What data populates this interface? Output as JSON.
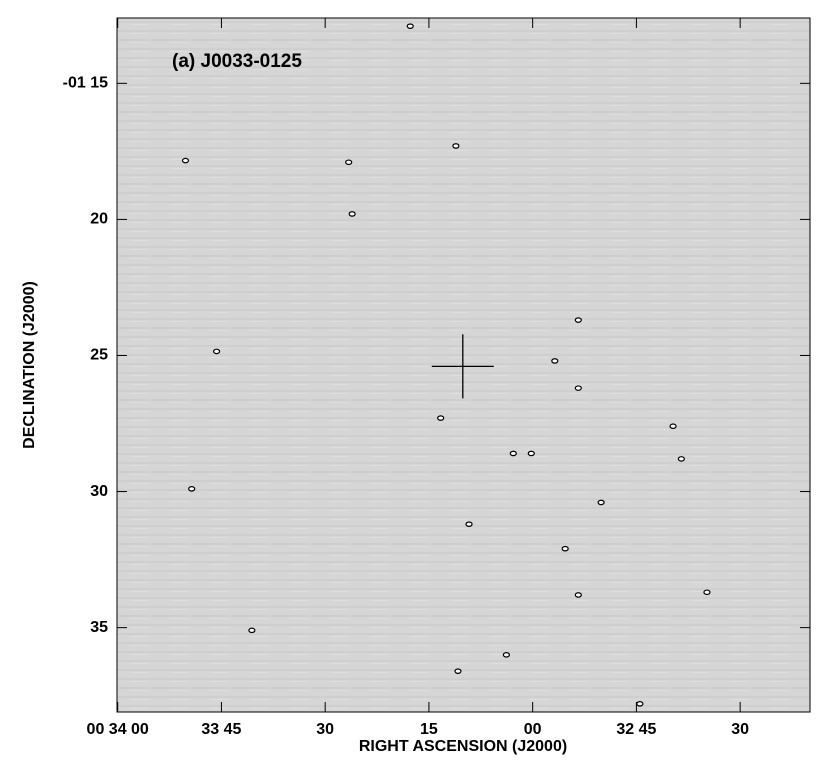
{
  "chart_data": {
    "type": "contour",
    "title": "(a) J0033-0125",
    "x_label": "RIGHT ASCENSION (J2000)",
    "y_label": "DECLINATION (J2000)",
    "xlim": [
      2040.1,
      1939.9
    ],
    "ylim": [
      38.1,
      12.6
    ],
    "xticks": [
      {
        "value": 2040,
        "label": "00 34 00"
      },
      {
        "value": 2025,
        "label": "33 45"
      },
      {
        "value": 2010,
        "label": "30"
      },
      {
        "value": 1995,
        "label": "15"
      },
      {
        "value": 1980,
        "label": "00"
      },
      {
        "value": 1965,
        "label": "32 45"
      },
      {
        "value": 1950,
        "label": "30"
      }
    ],
    "yticks": [
      {
        "value": 15,
        "label": "-01 15"
      },
      20,
      25,
      30,
      35
    ],
    "marker": {
      "x": 1990.1,
      "y": 25.4
    },
    "sources": {
      "x": [
        2030.2,
        2006.6,
        2006.1,
        1991.1,
        1997.7,
        2025.7,
        2029.3,
        1993.3,
        1976.8,
        1973.4,
        1973.4,
        1980.2,
        1982.8,
        1989.2,
        1975.3,
        1973.4,
        1970.1,
        1959.7,
        1958.5,
        2020.6,
        1990.8,
        1964.5,
        1954.8,
        1983.8
      ],
      "y": [
        17.84,
        17.9,
        19.8,
        17.3,
        12.9,
        24.85,
        29.9,
        27.3,
        25.2,
        23.7,
        26.2,
        28.6,
        28.6,
        31.2,
        32.1,
        33.8,
        30.4,
        27.6,
        28.8,
        35.1,
        36.6,
        37.8,
        33.7,
        36.0
      ]
    },
    "grid": false
  }
}
